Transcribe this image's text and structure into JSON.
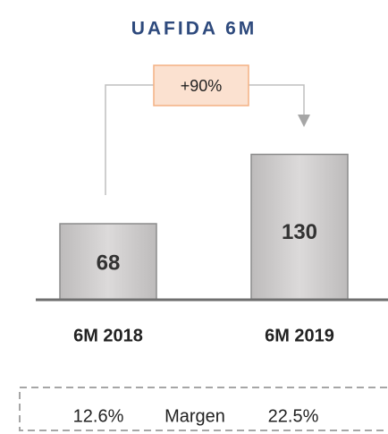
{
  "chart_data": {
    "type": "bar",
    "title": "UAFIDA 6M",
    "categories": [
      "6M 2018",
      "6M 2019"
    ],
    "values": [
      68,
      130
    ],
    "color": "#d0cece",
    "annotation": "+90%",
    "margin": {
      "label": "Margen",
      "values": [
        12.6,
        22.5
      ],
      "value_labels": [
        "12.6%",
        "22.5%"
      ]
    }
  }
}
